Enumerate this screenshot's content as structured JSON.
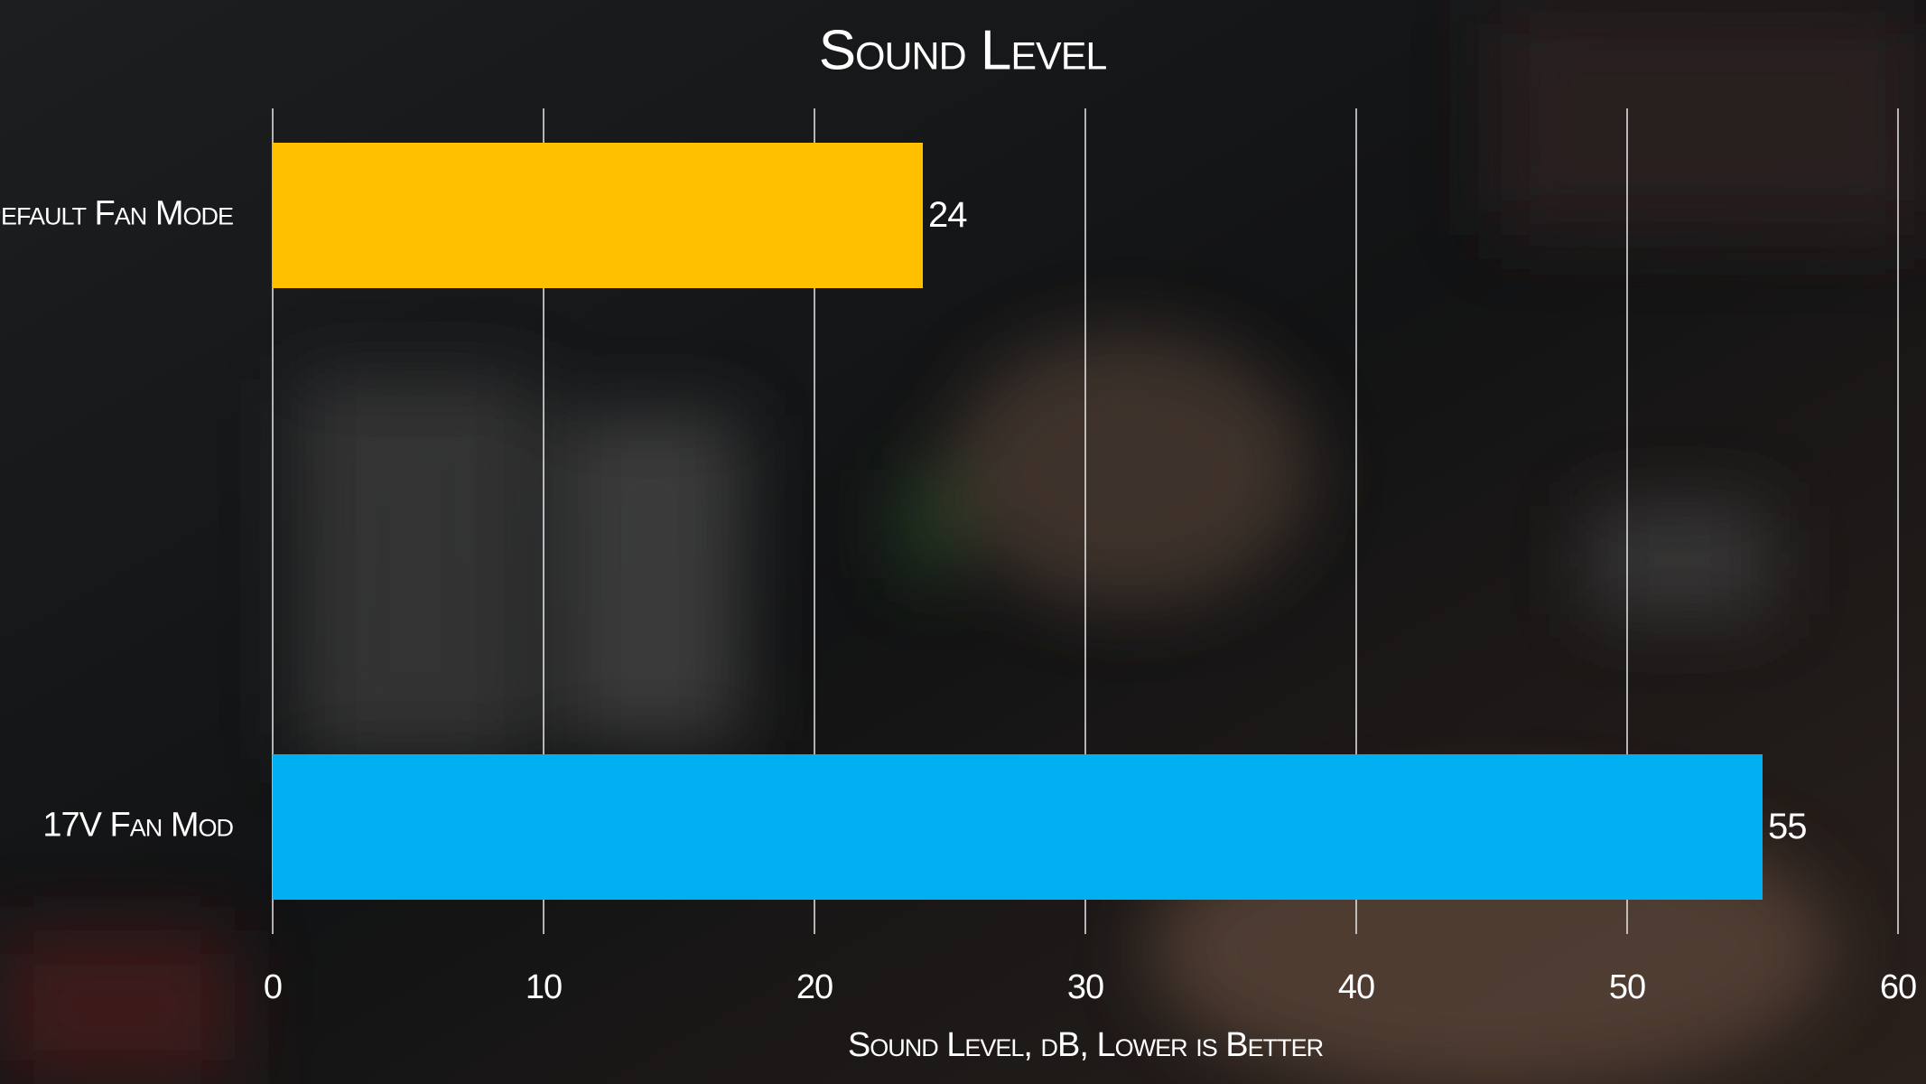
{
  "chart_data": {
    "type": "barh",
    "title": "Sound Level",
    "categories": [
      "Default Fan Mode",
      "17V Fan Mod"
    ],
    "values": [
      24,
      55
    ],
    "colors": [
      "#ffc000",
      "#00b0f0"
    ],
    "xlim": [
      0,
      60
    ],
    "xticks": [
      0,
      10,
      20,
      30,
      40,
      50,
      60
    ],
    "xlabel": "Sound Level, dB, Lower is Better",
    "grid": true
  }
}
